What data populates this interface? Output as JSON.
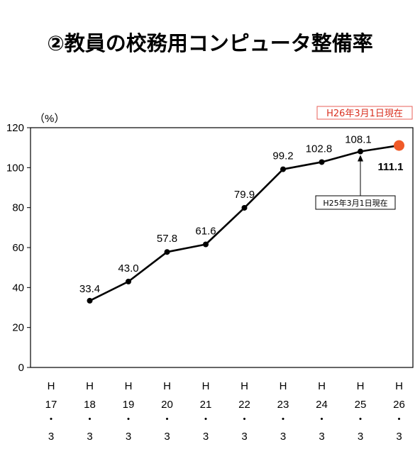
{
  "title": "②教員の校務用コンピュータ整備率",
  "highlight_note": "H26年3月1日現在",
  "annotation_note": "H25年3月1日現在",
  "colors": {
    "line": "#000000",
    "highlight": "#f05a28",
    "highlight_text": "#e0401f",
    "note_border": "#e8605a"
  },
  "chart_data": {
    "type": "line",
    "title": "②教員の校務用コンピュータ整備率",
    "ylabel": "（%）",
    "xlabel": "",
    "ylim": [
      0,
      120
    ],
    "yticks": [
      "0",
      "20",
      "40",
      "60",
      "80",
      "100",
      "120"
    ],
    "categories": [
      {
        "era": "H",
        "year": "17",
        "sep": "・",
        "month": "3"
      },
      {
        "era": "H",
        "year": "18",
        "sep": "・",
        "month": "3"
      },
      {
        "era": "H",
        "year": "19",
        "sep": "・",
        "month": "3"
      },
      {
        "era": "H",
        "year": "20",
        "sep": "・",
        "month": "3"
      },
      {
        "era": "H",
        "year": "21",
        "sep": "・",
        "month": "3"
      },
      {
        "era": "H",
        "year": "22",
        "sep": "・",
        "month": "3"
      },
      {
        "era": "H",
        "year": "23",
        "sep": "・",
        "month": "3"
      },
      {
        "era": "H",
        "year": "24",
        "sep": "・",
        "month": "3"
      },
      {
        "era": "H",
        "year": "25",
        "sep": "・",
        "month": "3"
      },
      {
        "era": "H",
        "year": "26",
        "sep": "・",
        "month": "3"
      }
    ],
    "values": [
      null,
      33.4,
      43.0,
      57.8,
      61.6,
      79.9,
      99.2,
      102.8,
      108.1,
      111.1
    ],
    "value_labels": [
      "",
      "33.4",
      "43.0",
      "57.8",
      "61.6",
      "79.9",
      "99.2",
      "102.8",
      "108.1",
      "111.1"
    ],
    "grid": false,
    "legend": "none"
  }
}
